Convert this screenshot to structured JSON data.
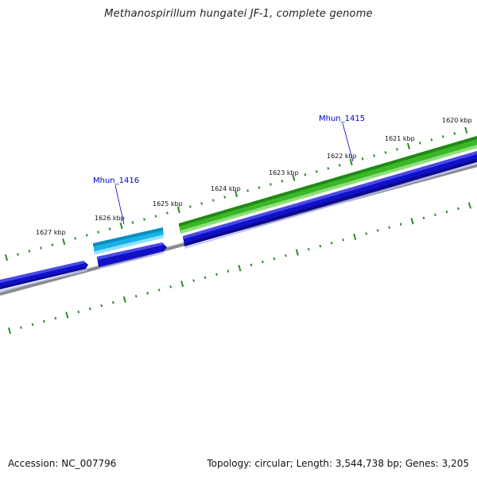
{
  "title": "Methanospirillum hungatei JF-1, complete genome",
  "footer": {
    "accession_label": "Accession:",
    "accession": "NC_007796",
    "topology_text": "Topology: circular; Length: 3,544,738 bp; Genes: 3,205"
  },
  "map": {
    "tick_labels": [
      "1620 kbp",
      "1621 kbp",
      "1622 kbp",
      "1623 kbp",
      "1624 kbp",
      "1625 kbp",
      "1626 kbp",
      "1627 kbp"
    ],
    "genes": [
      {
        "name": "Mhun_1415",
        "labeled": true,
        "strand": "forward",
        "color": "#2e9d1e"
      },
      {
        "name": "Mhun_1416",
        "labeled": true,
        "strand": "forward",
        "color": "#1aa6d6"
      }
    ],
    "colors": {
      "forward_gene": "#3cb728",
      "forward_gene_alt": "#18b2e6",
      "cds_track": "#1010c8",
      "backbone": "#808080",
      "tick_marks": "#2a8a2a",
      "label": "#0000cc"
    }
  }
}
